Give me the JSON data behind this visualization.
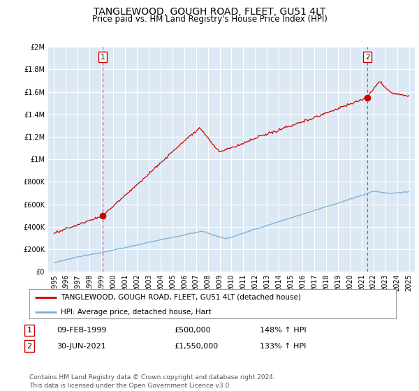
{
  "title": "TANGLEWOOD, GOUGH ROAD, FLEET, GU51 4LT",
  "subtitle": "Price paid vs. HM Land Registry's House Price Index (HPI)",
  "title_fontsize": 10,
  "subtitle_fontsize": 8.5,
  "background_color": "#ffffff",
  "plot_bg_color": "#dce9f5",
  "grid_color": "#ffffff",
  "red_line_color": "#cc0000",
  "blue_line_color": "#7aaed4",
  "dashed_line_color": "#cc0000",
  "sale1_year": 1999.1,
  "sale1_price": 500000,
  "sale2_year": 2021.5,
  "sale2_price": 1550000,
  "ylim_min": 0,
  "ylim_max": 2000000,
  "yticks": [
    0,
    200000,
    400000,
    600000,
    800000,
    1000000,
    1200000,
    1400000,
    1600000,
    1800000,
    2000000
  ],
  "ytick_labels": [
    "£0",
    "£200K",
    "£400K",
    "£600K",
    "£800K",
    "£1M",
    "£1.2M",
    "£1.4M",
    "£1.6M",
    "£1.8M",
    "£2M"
  ],
  "xlim_min": 1994.5,
  "xlim_max": 2025.5,
  "xticks": [
    1995,
    1996,
    1997,
    1998,
    1999,
    2000,
    2001,
    2002,
    2003,
    2004,
    2005,
    2006,
    2007,
    2008,
    2009,
    2010,
    2011,
    2012,
    2013,
    2014,
    2015,
    2016,
    2017,
    2018,
    2019,
    2020,
    2021,
    2022,
    2023,
    2024,
    2025
  ],
  "legend_label_red": "TANGLEWOOD, GOUGH ROAD, FLEET, GU51 4LT (detached house)",
  "legend_label_blue": "HPI: Average price, detached house, Hart",
  "table_row1": [
    "1",
    "09-FEB-1999",
    "£500,000",
    "148% ↑ HPI"
  ],
  "table_row2": [
    "2",
    "30-JUN-2021",
    "£1,550,000",
    "133% ↑ HPI"
  ],
  "footnote": "Contains HM Land Registry data © Crown copyright and database right 2024.\nThis data is licensed under the Open Government Licence v3.0.",
  "footnote_fontsize": 6.5
}
